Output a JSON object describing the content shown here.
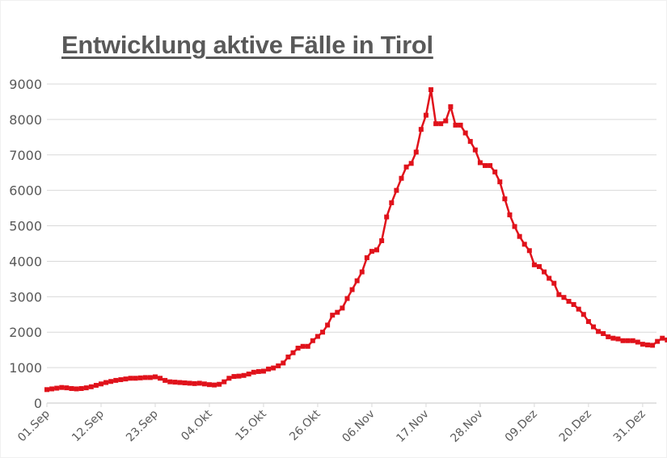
{
  "chart_data": {
    "type": "line",
    "title": "Entwicklung aktive Fälle in Tirol",
    "xlabel": "",
    "ylabel": "",
    "ylim": [
      0,
      9000
    ],
    "grid": true,
    "legend": "none",
    "line_color": "#e0121b",
    "y_ticks": [
      "0",
      "1000",
      "2000",
      "3000",
      "4000",
      "5000",
      "6000",
      "7000",
      "8000",
      "9000"
    ],
    "x_ticks": [
      "01.Sep",
      "12.Sep",
      "23.Sep",
      "04.Okt",
      "15.Okt",
      "26.Okt",
      "06.Nov",
      "17.Nov",
      "28.Nov",
      "09.Dez",
      "20.Dez",
      "31.Dez"
    ],
    "x_start": "01.Sep",
    "x_end": "03.Jan",
    "values": [
      380,
      400,
      420,
      440,
      430,
      410,
      400,
      410,
      430,
      460,
      500,
      540,
      580,
      610,
      640,
      660,
      680,
      700,
      700,
      710,
      720,
      720,
      740,
      700,
      640,
      600,
      590,
      580,
      570,
      560,
      550,
      560,
      540,
      520,
      510,
      530,
      600,
      700,
      750,
      760,
      780,
      820,
      870,
      890,
      900,
      960,
      990,
      1050,
      1130,
      1300,
      1420,
      1550,
      1600,
      1600,
      1760,
      1880,
      2000,
      2200,
      2480,
      2560,
      2680,
      2950,
      3200,
      3450,
      3700,
      4100,
      4280,
      4320,
      4580,
      5250,
      5650,
      6000,
      6340,
      6660,
      6760,
      7080,
      7720,
      8120,
      8840,
      7880,
      7880,
      7960,
      8360,
      7840,
      7840,
      7620,
      7380,
      7140,
      6780,
      6700,
      6700,
      6520,
      6240,
      5760,
      5310,
      4980,
      4700,
      4480,
      4300,
      3900,
      3850,
      3700,
      3520,
      3380,
      3060,
      2980,
      2870,
      2780,
      2650,
      2500,
      2300,
      2150,
      2020,
      1960,
      1870,
      1830,
      1810,
      1760,
      1760,
      1760,
      1720,
      1660,
      1640,
      1630,
      1740,
      1830,
      1780
    ]
  }
}
